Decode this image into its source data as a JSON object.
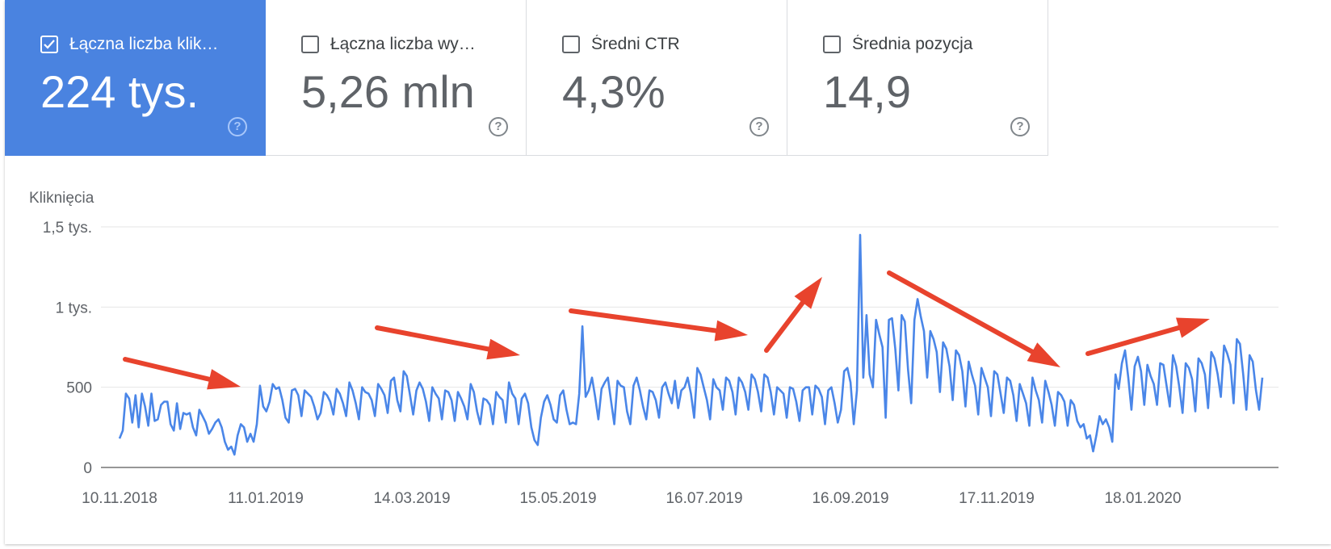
{
  "cards": [
    {
      "label": "Łączna liczba klik…",
      "value": "224 tys.",
      "checked": true,
      "help_icon": "question-circle-icon"
    },
    {
      "label": "Łączna liczba wy…",
      "value": "5,26 mln",
      "checked": false,
      "help_icon": "question-circle-icon"
    },
    {
      "label": "Średni CTR",
      "value": "4,3%",
      "checked": false,
      "help_icon": "question-circle-icon"
    },
    {
      "label": "Średnia pozycja",
      "value": "14,9",
      "checked": false,
      "help_icon": "question-circle-icon"
    }
  ],
  "colors": {
    "accent": "#4a83e0",
    "line": "#4a86e8",
    "annotation": "#e8432d",
    "grid": "#e6e6e6",
    "axis": "#757575"
  },
  "chart_data": {
    "type": "line",
    "title": "",
    "ylabel": "Kliknięcia",
    "xlabel": "",
    "ylim": [
      0,
      1500
    ],
    "yticks": [
      0,
      500,
      1000,
      1500
    ],
    "ytick_labels": [
      "0",
      "500",
      "1 tys.",
      "1,5 tys."
    ],
    "x_start": "2018-11-10",
    "x_end": "2020-03-08",
    "xtick_labels": [
      "10.11.2018",
      "11.01.2019",
      "14.03.2019",
      "15.05.2019",
      "16.07.2019",
      "16.09.2019",
      "17.11.2019",
      "18.01.2020"
    ],
    "grid": true,
    "legend": "none",
    "series": [
      {
        "values": [
          180,
          230,
          460,
          430,
          280,
          450,
          250,
          460,
          380,
          260,
          460,
          290,
          300,
          390,
          410,
          410,
          270,
          230,
          400,
          240,
          340,
          330,
          340,
          250,
          200,
          360,
          320,
          280,
          210,
          240,
          280,
          300,
          250,
          160,
          110,
          130,
          80,
          200,
          270,
          250,
          160,
          210,
          160,
          270,
          510,
          380,
          350,
          410,
          520,
          490,
          500,
          420,
          310,
          280,
          480,
          490,
          450,
          320,
          480,
          460,
          440,
          380,
          300,
          340,
          470,
          450,
          410,
          330,
          490,
          460,
          400,
          320,
          530,
          480,
          400,
          300,
          500,
          470,
          460,
          420,
          320,
          520,
          490,
          450,
          340,
          540,
          560,
          420,
          350,
          600,
          570,
          450,
          330,
          480,
          530,
          490,
          410,
          290,
          500,
          460,
          430,
          300,
          480,
          470,
          420,
          290,
          470,
          430,
          380,
          300,
          520,
          470,
          350,
          270,
          430,
          420,
          390,
          270,
          470,
          440,
          420,
          280,
          530,
          460,
          430,
          270,
          430,
          460,
          400,
          250,
          170,
          140,
          310,
          410,
          450,
          390,
          300,
          280,
          450,
          480,
          360,
          270,
          280,
          270,
          460,
          880,
          440,
          480,
          560,
          440,
          300,
          490,
          530,
          560,
          410,
          270,
          540,
          510,
          500,
          350,
          270,
          510,
          560,
          480,
          380,
          300,
          480,
          470,
          420,
          310,
          500,
          530,
          460,
          400,
          540,
          370,
          480,
          500,
          560,
          460,
          310,
          620,
          580,
          500,
          420,
          300,
          550,
          500,
          480,
          360,
          560,
          540,
          470,
          330,
          560,
          530,
          470,
          360,
          580,
          550,
          470,
          350,
          580,
          560,
          470,
          330,
          500,
          480,
          460,
          310,
          500,
          490,
          410,
          290,
          480,
          500,
          500,
          330,
          510,
          490,
          440,
          270,
          480,
          500,
          400,
          280,
          360,
          600,
          620,
          530,
          270,
          480,
          1450,
          560,
          950,
          580,
          500,
          920,
          830,
          750,
          310,
          920,
          930,
          740,
          480,
          950,
          910,
          610,
          400,
          920,
          1050,
          940,
          850,
          560,
          850,
          800,
          720,
          470,
          780,
          740,
          630,
          420,
          730,
          700,
          600,
          380,
          660,
          580,
          510,
          330,
          620,
          560,
          500,
          320,
          600,
          580,
          460,
          340,
          560,
          540,
          450,
          290,
          520,
          460,
          400,
          260,
          560,
          480,
          420,
          280,
          540,
          470,
          390,
          260,
          470,
          450,
          410,
          260,
          420,
          390,
          290,
          250,
          270,
          180,
          200,
          100,
          200,
          320,
          270,
          300,
          250,
          160,
          580,
          490,
          650,
          730,
          560,
          360,
          630,
          690,
          600,
          390,
          640,
          570,
          520,
          390,
          650,
          640,
          510,
          380,
          700,
          630,
          500,
          340,
          650,
          620,
          550,
          350,
          680,
          650,
          580,
          370,
          720,
          680,
          580,
          440,
          760,
          710,
          640,
          400,
          800,
          770,
          580,
          360,
          700,
          660,
          480,
          360,
          560
        ]
      }
    ],
    "annotations": [
      "arrow",
      "arrow",
      "arrow",
      "arrow",
      "arrow",
      "arrow"
    ]
  }
}
